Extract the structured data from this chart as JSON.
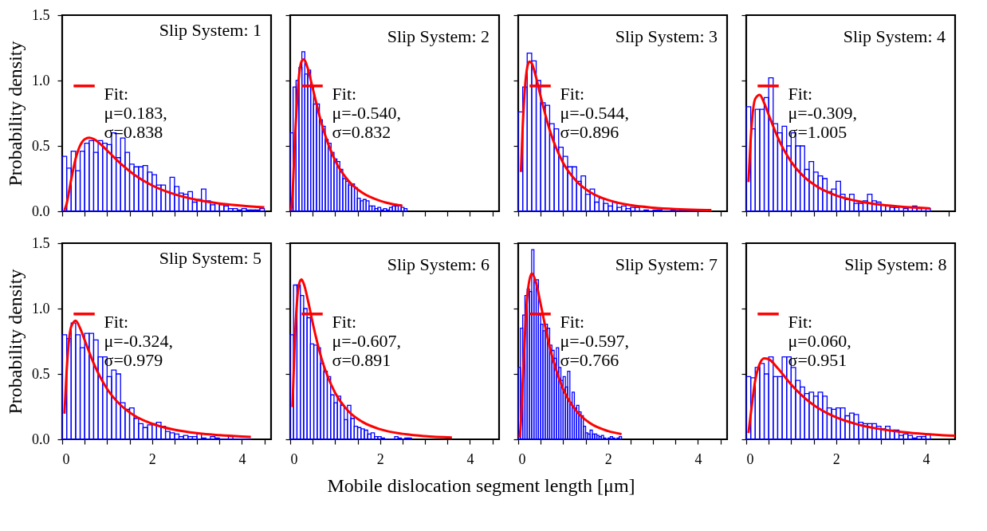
{
  "chart_data": [
    {
      "type": "histogram",
      "title": "Slip System: 1",
      "ylabel": "Probability density",
      "xlim": [
        0,
        4.65
      ],
      "ylim": [
        0,
        1.5
      ],
      "xticks": [
        0,
        0.5,
        1,
        1.5,
        2,
        2.5,
        3,
        3.5,
        4,
        4.5
      ],
      "yticks": [
        {
          "value": 0,
          "label": "0.0"
        },
        {
          "value": 0.5,
          "label": "0.5"
        },
        {
          "value": 1,
          "label": "1.0"
        },
        {
          "value": 1.5,
          "label": "1.5"
        }
      ],
      "tick_labels": "y",
      "legend": "top",
      "series": [
        {
          "type": "histogram",
          "color": "#0000ff",
          "bins": [
            0,
            0.1,
            0.2,
            0.3,
            0.4,
            0.5,
            0.6,
            0.7,
            0.8,
            0.9,
            1,
            1.1,
            1.2,
            1.3,
            1.4,
            1.5,
            1.6,
            1.7,
            1.8,
            1.9,
            2,
            2.1,
            2.2,
            2.3,
            2.4,
            2.5,
            2.6,
            2.7,
            2.8,
            2.9,
            3,
            3.1,
            3.2,
            3.3,
            3.4,
            3.5,
            3.6,
            3.7,
            3.8,
            3.9,
            4,
            4.1,
            4.2,
            4.3,
            4.4,
            4.5
          ],
          "values": [
            0.42,
            0.33,
            0.46,
            0.31,
            0.46,
            0.52,
            0.54,
            0.45,
            0.54,
            0.52,
            0.51,
            0.6,
            0.41,
            0.56,
            0.45,
            0.36,
            0.34,
            0.34,
            0.35,
            0.3,
            0.28,
            0.2,
            0.2,
            0.15,
            0.26,
            0.19,
            0.14,
            0.13,
            0.15,
            0.07,
            0.09,
            0.17,
            0.08,
            0.05,
            0.06,
            0.05,
            0.04,
            0.02,
            0.02,
            0.01,
            0.02,
            0.01,
            0.01,
            0.01,
            0.02
          ]
        },
        {
          "type": "line",
          "name": "Fit:\nμ=0.183,\nσ=0.838",
          "color": "#ff0000",
          "x": [
            0.05,
            0.1,
            0.2,
            0.3,
            0.4,
            0.5,
            0.6,
            0.7,
            1,
            1.3,
            1.6,
            2,
            2.5,
            3,
            3.5,
            4,
            4.5
          ],
          "values": [
            0.007,
            0.059,
            0.242,
            0.403,
            0.504,
            0.551,
            0.563,
            0.553,
            0.465,
            0.365,
            0.281,
            0.198,
            0.13,
            0.087,
            0.06,
            0.043,
            0.031
          ]
        }
      ]
    },
    {
      "type": "histogram",
      "title": "Slip System: 2",
      "xlim": [
        0,
        4.65
      ],
      "ylim": [
        0,
        1.5
      ],
      "xticks": [
        0,
        0.5,
        1,
        1.5,
        2,
        2.5,
        3,
        3.5,
        4,
        4.5
      ],
      "yticks": [
        0,
        0.5,
        1,
        1.5
      ],
      "tick_labels": false,
      "legend": "top",
      "series": [
        {
          "type": "histogram",
          "color": "#0000ff",
          "bins": [
            0,
            0.065,
            0.13,
            0.195,
            0.26,
            0.325,
            0.39,
            0.455,
            0.52,
            0.585,
            0.65,
            0.715,
            0.78,
            0.845,
            0.91,
            0.975,
            1.04,
            1.105,
            1.17,
            1.235,
            1.3,
            1.365,
            1.43,
            1.495,
            1.56,
            1.625,
            1.69,
            1.755,
            1.82,
            1.885,
            1.95,
            2.015,
            2.08,
            2.145,
            2.21,
            2.275,
            2.34,
            2.405,
            2.47,
            2.535,
            2.6
          ],
          "values": [
            0.6,
            0.95,
            1,
            1.1,
            1.22,
            1.05,
            1.08,
            0.95,
            0.82,
            0.82,
            0.7,
            0.65,
            0.55,
            0.52,
            0.45,
            0.4,
            0.38,
            0.32,
            0.25,
            0.23,
            0.2,
            0.21,
            0.18,
            0.1,
            0.08,
            0.09,
            0.08,
            0.04,
            0.04,
            0.02,
            0.03,
            0.01,
            0.02,
            0.01,
            0.03,
            0.04,
            0.04,
            0.05,
            0.03,
            0.02
          ]
        },
        {
          "type": "line",
          "name": "Fit:\nμ=-0.540,\nσ=0.832",
          "color": "#ff0000",
          "x": [
            0.02,
            0.05,
            0.1,
            0.2,
            0.25,
            0.3,
            0.4,
            0.5,
            0.7,
            1,
            1.3,
            1.6,
            2,
            2.5
          ],
          "values": [
            0.007,
            0.123,
            0.508,
            1.05,
            1.144,
            1.162,
            1.083,
            0.943,
            0.669,
            0.388,
            0.232,
            0.143,
            0.08,
            0.042
          ]
        }
      ]
    },
    {
      "type": "histogram",
      "title": "Slip System: 3",
      "xlim": [
        0,
        4.65
      ],
      "ylim": [
        0,
        1.5
      ],
      "xticks": [
        0,
        0.5,
        1,
        1.5,
        2,
        2.5,
        3,
        3.5,
        4,
        4.5
      ],
      "yticks": [
        0,
        0.5,
        1,
        1.5
      ],
      "tick_labels": false,
      "legend": "top",
      "series": [
        {
          "type": "histogram",
          "color": "#0000ff",
          "bins": [
            0,
            0.1,
            0.2,
            0.3,
            0.4,
            0.5,
            0.6,
            0.7,
            0.8,
            0.9,
            1,
            1.1,
            1.2,
            1.3,
            1.4,
            1.5,
            1.6,
            1.7,
            1.8,
            1.9,
            2,
            2.1,
            2.2,
            2.3,
            2.4,
            2.5,
            2.6,
            2.7,
            2.8,
            2.9,
            3,
            3.1,
            3.2,
            3.3,
            3.4,
            3.5,
            3.6,
            3.7,
            3.8,
            3.9,
            4,
            4.1,
            4.2,
            4.3
          ],
          "values": [
            0.76,
            0.95,
            1.21,
            1.15,
            1,
            0.83,
            0.81,
            0.67,
            0.63,
            0.49,
            0.42,
            0.34,
            0.34,
            0.23,
            0.27,
            0.13,
            0.17,
            0.07,
            0.1,
            0.06,
            0.04,
            0.07,
            0.03,
            0.04,
            0.02,
            0.03,
            0.03,
            0,
            0.01,
            0,
            0.01,
            0.01,
            0,
            0,
            0.01,
            0,
            0,
            0,
            0,
            0,
            0,
            0,
            null
          ]
        },
        {
          "type": "line",
          "name": "Fit:\nμ=-0.544,\nσ=0.896",
          "color": "#ff0000",
          "x": [
            0.06,
            0.1,
            0.2,
            0.25,
            0.3,
            0.4,
            0.5,
            0.7,
            1,
            1.3,
            1.6,
            2,
            2.5,
            3,
            3.5,
            4,
            4.3
          ],
          "values": [
            0.3,
            0.648,
            1.099,
            1.145,
            1.132,
            1.021,
            0.878,
            0.622,
            0.37,
            0.229,
            0.147,
            0.086,
            0.047,
            0.028,
            0.017,
            0.011,
            0.009
          ]
        }
      ]
    },
    {
      "type": "histogram",
      "title": "Slip System: 4",
      "xlim": [
        0,
        4.65
      ],
      "ylim": [
        0,
        1.5
      ],
      "xticks": [
        0,
        0.5,
        1,
        1.5,
        2,
        2.5,
        3,
        3.5,
        4,
        4.5
      ],
      "yticks": [
        0,
        0.5,
        1,
        1.5
      ],
      "tick_labels": false,
      "legend": "top",
      "series": [
        {
          "type": "histogram",
          "color": "#0000ff",
          "bins": [
            0,
            0.1,
            0.2,
            0.3,
            0.4,
            0.5,
            0.6,
            0.7,
            0.8,
            0.9,
            1,
            1.1,
            1.2,
            1.3,
            1.4,
            1.5,
            1.6,
            1.7,
            1.8,
            1.9,
            2,
            2.1,
            2.2,
            2.3,
            2.4,
            2.5,
            2.6,
            2.7,
            2.8,
            2.9,
            3,
            3.1,
            3.2,
            3.3,
            3.4,
            3.5,
            3.6,
            3.7,
            3.8,
            3.9,
            4,
            4.1
          ],
          "values": [
            0.8,
            0.63,
            0.78,
            0.78,
            0.87,
            1.02,
            0.67,
            0.6,
            0.65,
            0.5,
            0.6,
            0.5,
            0.5,
            0.32,
            0.38,
            0.3,
            0.27,
            0.25,
            0.15,
            0.17,
            0.23,
            0.13,
            0.09,
            0.13,
            0.06,
            0.06,
            0.08,
            0.13,
            0.08,
            0.07,
            0.05,
            0.04,
            0.03,
            0.03,
            0,
            0.02,
            0.03,
            0.04,
            0.02,
            0,
            0.02
          ]
        },
        {
          "type": "line",
          "name": "Fit:\nμ=-0.309,\nσ=1.005",
          "color": "#ff0000",
          "x": [
            0.05,
            0.1,
            0.2,
            0.3,
            0.4,
            0.5,
            0.7,
            1,
            1.3,
            1.6,
            2,
            2.5,
            3,
            3.5,
            4,
            4.1
          ],
          "values": [
            0.223,
            0.555,
            0.86,
            0.89,
            0.827,
            0.738,
            0.567,
            0.379,
            0.26,
            0.184,
            0.121,
            0.076,
            0.05,
            0.034,
            0.024,
            0.022
          ]
        }
      ]
    },
    {
      "type": "histogram",
      "title": "Slip System: 5",
      "ylabel": "Probability density",
      "xlabel": "Mobile dislocation segment length [μm]",
      "xlim": [
        0,
        4.65
      ],
      "ylim": [
        0,
        1.5
      ],
      "xticks": [
        0,
        {
          "value": 0.5,
          "label": null
        },
        {
          "value": 1,
          "label": null
        },
        {
          "value": 1.5,
          "label": null
        },
        2,
        {
          "value": 2.5,
          "label": null
        },
        {
          "value": 3,
          "label": null
        },
        {
          "value": 3.5,
          "label": null
        },
        4,
        {
          "value": 4.5,
          "label": null
        }
      ],
      "yticks": [
        {
          "value": 0,
          "label": "0.0"
        },
        {
          "value": 0.5,
          "label": "0.5"
        },
        {
          "value": 1,
          "label": "1.0"
        },
        {
          "value": 1.5,
          "label": "1.5"
        }
      ],
      "legend": "top",
      "series": [
        {
          "type": "histogram",
          "color": "#0000ff",
          "bins": [
            0,
            0.1,
            0.2,
            0.3,
            0.4,
            0.5,
            0.6,
            0.7,
            0.8,
            0.9,
            1,
            1.1,
            1.2,
            1.3,
            1.4,
            1.5,
            1.6,
            1.7,
            1.8,
            1.9,
            2,
            2.1,
            2.2,
            2.3,
            2.4,
            2.5,
            2.6,
            2.7,
            2.8,
            2.9,
            3,
            3.1,
            3.2,
            3.3,
            3.4,
            3.5,
            3.6,
            3.7,
            3.8,
            3.9,
            4,
            4.1,
            4.2
          ],
          "values": [
            0.8,
            0.77,
            0.89,
            0.8,
            0.7,
            0.81,
            0.81,
            0.76,
            0.63,
            0.63,
            0.48,
            0.53,
            0.5,
            0.28,
            0.23,
            0.24,
            0.16,
            0.12,
            0.09,
            0.11,
            0.12,
            0.13,
            0.1,
            0.06,
            0.05,
            0.04,
            0.02,
            0.03,
            0.02,
            0.02,
            0.04,
            0.01,
            0,
            0.02,
            0.01,
            0,
            0,
            0.02,
            0,
            0,
            0,
            0
          ]
        },
        {
          "type": "line",
          "name": "Fit:\nμ=-0.324,\nσ=0.979",
          "color": "#ff0000",
          "x": [
            0.05,
            0.1,
            0.2,
            0.3,
            0.4,
            0.5,
            0.7,
            1,
            1.3,
            1.6,
            2,
            2.5,
            3,
            3.5,
            4,
            4.2
          ],
          "values": [
            0.196,
            0.528,
            0.861,
            0.907,
            0.849,
            0.759,
            0.582,
            0.386,
            0.262,
            0.183,
            0.119,
            0.073,
            0.047,
            0.032,
            0.022,
            0.019
          ]
        }
      ]
    },
    {
      "type": "histogram",
      "title": "Slip System: 6",
      "xlim": [
        0,
        4.65
      ],
      "ylim": [
        0,
        1.5
      ],
      "xticks": [
        0,
        {
          "value": 0.5,
          "label": null
        },
        {
          "value": 1,
          "label": null
        },
        {
          "value": 1.5,
          "label": null
        },
        2,
        {
          "value": 2.5,
          "label": null
        },
        {
          "value": 3,
          "label": null
        },
        {
          "value": 3.5,
          "label": null
        },
        4,
        {
          "value": 4.5,
          "label": null
        }
      ],
      "yticks": [
        0,
        0.5,
        1,
        1.5
      ],
      "tick_labels": "x",
      "legend": "top",
      "series": [
        {
          "type": "histogram",
          "color": "#0000ff",
          "bins": [
            0,
            0.075,
            0.15,
            0.225,
            0.3,
            0.375,
            0.45,
            0.525,
            0.6,
            0.675,
            0.75,
            0.825,
            0.9,
            0.975,
            1.05,
            1.125,
            1.2,
            1.275,
            1.35,
            1.425,
            1.5,
            1.575,
            1.65,
            1.725,
            1.8,
            1.875,
            1.95,
            2.025,
            2.1,
            2.175,
            2.25,
            2.325,
            2.4,
            2.475,
            2.55,
            2.625,
            2.7
          ],
          "values": [
            0.8,
            1.18,
            1.18,
            1.1,
            1,
            0.93,
            0.73,
            0.72,
            0.7,
            0.58,
            0.52,
            0.48,
            0.34,
            0.28,
            0.33,
            0.26,
            0.15,
            0.26,
            0.16,
            0.1,
            0.09,
            0.08,
            0.07,
            0.04,
            0.05,
            0.02,
            0.02,
            0.01,
            0,
            0,
            0,
            0.02,
            0.01,
            0,
            0.01,
            0.01
          ]
        },
        {
          "type": "line",
          "name": "Fit:\nμ=-0.607,\nσ=0.891",
          "color": "#ff0000",
          "x": [
            0.05,
            0.1,
            0.2,
            0.25,
            0.3,
            0.4,
            0.5,
            0.7,
            1,
            1.3,
            1.6,
            2,
            2.5,
            3,
            3.6
          ],
          "values": [
            0.246,
            0.732,
            1.19,
            1.222,
            1.192,
            1.054,
            0.891,
            0.615,
            0.355,
            0.214,
            0.135,
            0.077,
            0.042,
            0.024,
            0.013
          ]
        }
      ]
    },
    {
      "type": "histogram",
      "title": "Slip System: 7",
      "xlim": [
        0,
        4.65
      ],
      "ylim": [
        0,
        1.5
      ],
      "xticks": [
        0,
        {
          "value": 0.5,
          "label": null
        },
        {
          "value": 1,
          "label": null
        },
        {
          "value": 1.5,
          "label": null
        },
        2,
        {
          "value": 2.5,
          "label": null
        },
        {
          "value": 3,
          "label": null
        },
        {
          "value": 3.5,
          "label": null
        },
        4,
        {
          "value": 4.5,
          "label": null
        }
      ],
      "yticks": [
        0,
        0.5,
        1,
        1.5
      ],
      "tick_labels": "x",
      "legend": "top",
      "series": [
        {
          "type": "histogram",
          "color": "#0000ff",
          "bins": [
            0,
            0.05,
            0.1,
            0.15,
            0.2,
            0.25,
            0.3,
            0.35,
            0.4,
            0.45,
            0.5,
            0.55,
            0.6,
            0.65,
            0.7,
            0.75,
            0.8,
            0.85,
            0.9,
            0.95,
            1,
            1.05,
            1.1,
            1.15,
            1.2,
            1.25,
            1.3,
            1.35,
            1.4,
            1.45,
            1.5,
            1.55,
            1.6,
            1.65,
            1.7,
            1.75,
            1.8,
            1.85,
            1.9,
            1.95,
            2,
            2.05,
            2.1,
            2.15,
            2.2,
            2.25,
            2.3
          ],
          "values": [
            0.55,
            0.85,
            0.95,
            1.1,
            1.15,
            1.13,
            1.45,
            1.2,
            1.22,
            0.95,
            0.88,
            0.83,
            0.88,
            0.85,
            0.72,
            0.68,
            0.62,
            0.7,
            0.55,
            0.45,
            0.48,
            0.4,
            0.52,
            0.28,
            0.36,
            0.24,
            0.26,
            0.21,
            0.18,
            0.1,
            0.05,
            0.04,
            0.07,
            0.04,
            0.04,
            0.03,
            0.02,
            0.03,
            0.01,
            0,
            0.01,
            0.02,
            0.01,
            0,
            0.01,
            0.02
          ]
        },
        {
          "type": "line",
          "name": "Fit:\nμ=-0.597,\nσ=0.766",
          "color": "#ff0000",
          "x": [
            0.03,
            0.05,
            0.1,
            0.2,
            0.3,
            0.4,
            0.5,
            0.7,
            1,
            1.3,
            1.6,
            2,
            2.3
          ],
          "values": [
            0.013,
            0.077,
            0.436,
            1.088,
            1.268,
            1.194,
            1.033,
            0.708,
            0.384,
            0.214,
            0.123,
            0.063,
            0.04
          ]
        }
      ]
    },
    {
      "type": "histogram",
      "title": "Slip System: 8",
      "xlim": [
        0,
        4.65
      ],
      "ylim": [
        0,
        1.5
      ],
      "xticks": [
        0,
        {
          "value": 0.5,
          "label": null
        },
        {
          "value": 1,
          "label": null
        },
        {
          "value": 1.5,
          "label": null
        },
        2,
        {
          "value": 2.5,
          "label": null
        },
        {
          "value": 3,
          "label": null
        },
        {
          "value": 3.5,
          "label": null
        },
        4,
        {
          "value": 4.5,
          "label": null
        }
      ],
      "yticks": [
        0,
        0.5,
        1,
        1.5
      ],
      "tick_labels": "x",
      "legend": "top",
      "series": [
        {
          "type": "histogram",
          "color": "#0000ff",
          "bins": [
            0,
            0.1,
            0.2,
            0.3,
            0.4,
            0.5,
            0.6,
            0.7,
            0.8,
            0.9,
            1,
            1.1,
            1.2,
            1.3,
            1.4,
            1.5,
            1.6,
            1.7,
            1.8,
            1.9,
            2,
            2.1,
            2.2,
            2.3,
            2.4,
            2.5,
            2.6,
            2.7,
            2.8,
            2.9,
            3,
            3.1,
            3.2,
            3.3,
            3.4,
            3.5,
            3.6,
            3.7,
            3.8,
            3.9,
            4,
            4.1
          ],
          "values": [
            0.48,
            0.47,
            0.55,
            0.58,
            0.5,
            0.63,
            0.48,
            0.48,
            0.63,
            0.63,
            0.55,
            0.45,
            0.4,
            0.35,
            0.36,
            0.33,
            0.36,
            0.33,
            0.24,
            0.23,
            0.24,
            0.24,
            0.18,
            0.2,
            0.19,
            0.13,
            0.12,
            0.12,
            0.12,
            0.1,
            0.08,
            0.1,
            0.07,
            0.07,
            0.03,
            0.04,
            0.03,
            0.01,
            0.02,
            0.02,
            0.04
          ]
        },
        {
          "type": "line",
          "name": "Fit:\nμ=0.060,\nσ=0.951",
          "color": "#ff0000",
          "x": [
            0.05,
            0.1,
            0.2,
            0.3,
            0.4,
            0.5,
            0.7,
            1,
            1.3,
            1.6,
            2,
            2.5,
            3,
            3.5,
            4,
            4.5,
            4.65
          ],
          "values": [
            0.048,
            0.191,
            0.45,
            0.578,
            0.619,
            0.613,
            0.544,
            0.419,
            0.316,
            0.239,
            0.168,
            0.112,
            0.077,
            0.055,
            0.04,
            0.029,
            0.027
          ]
        }
      ]
    }
  ]
}
